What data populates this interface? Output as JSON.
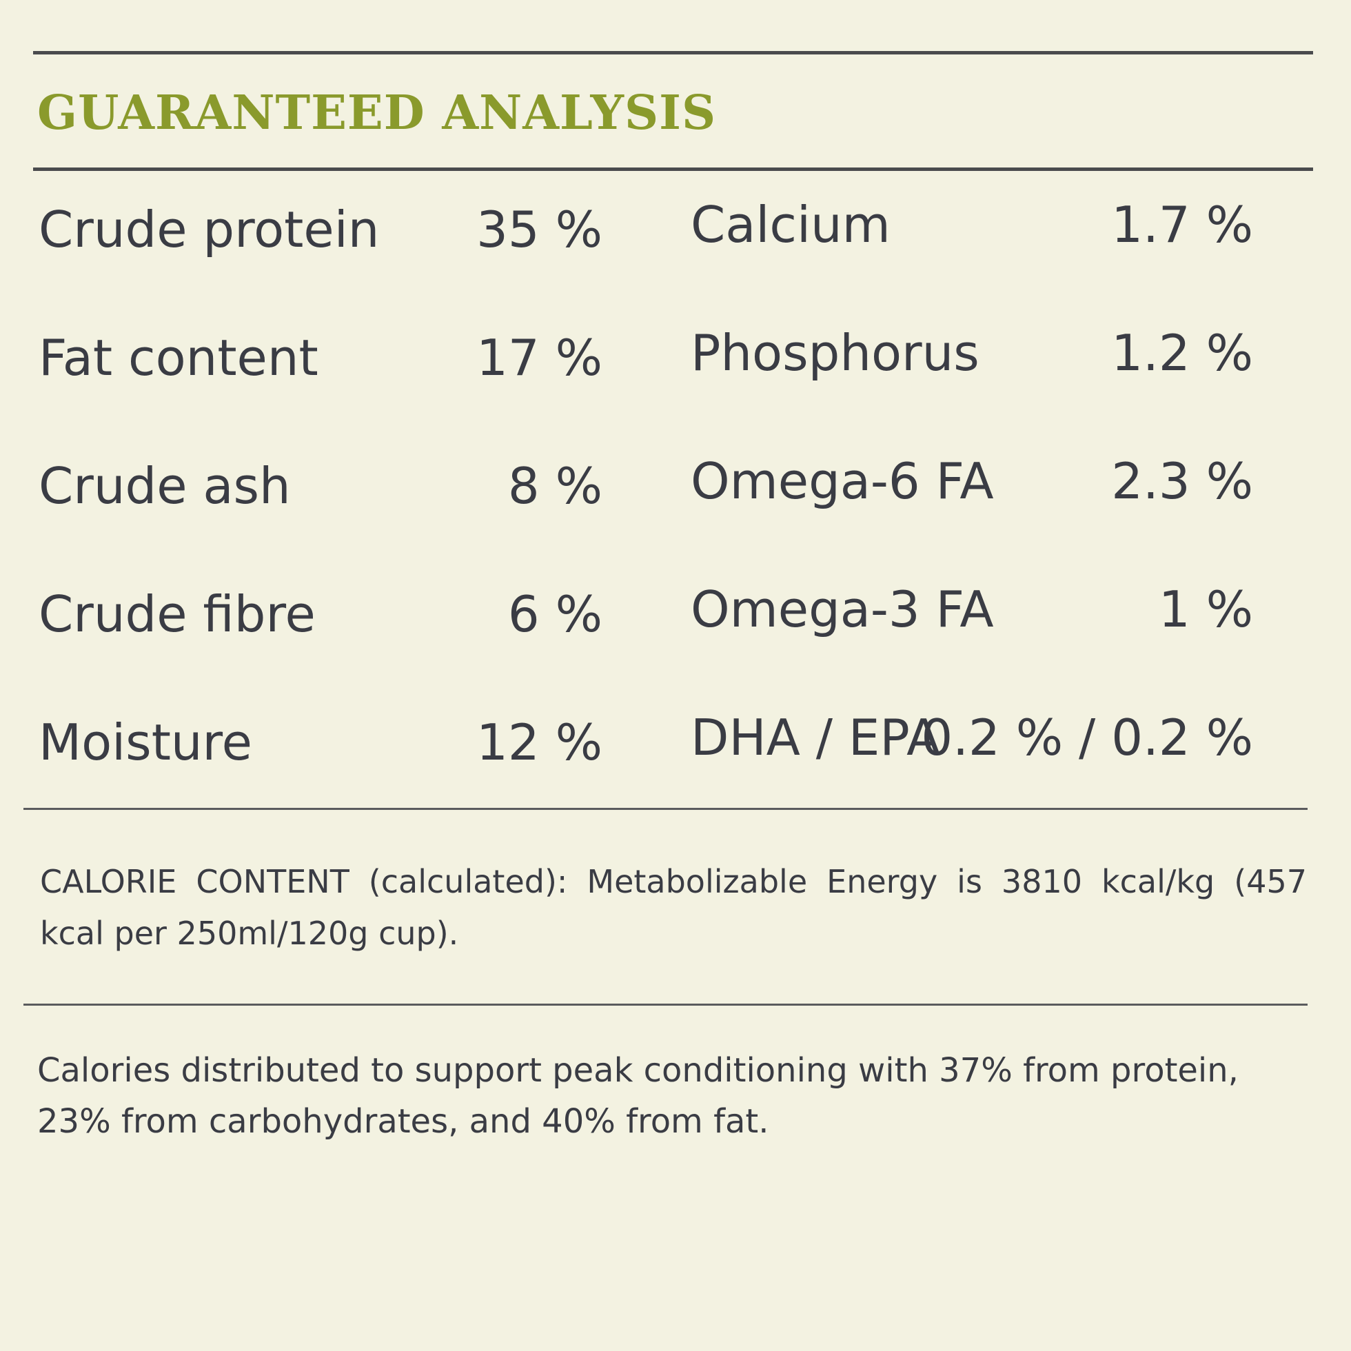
{
  "title": "GUARANTEED ANALYSIS",
  "left_column": [
    {
      "label": "Crude protein",
      "value": "35 %"
    },
    {
      "label": "Fat content",
      "value": "17 %"
    },
    {
      "label": "Crude ash",
      "value": "8 %"
    },
    {
      "label": "Crude fibre",
      "value": "6 %"
    },
    {
      "label": "Moisture",
      "value": "12 %"
    }
  ],
  "right_column": [
    {
      "label": "Calcium",
      "value": "1.7 %"
    },
    {
      "label": "Phosphorus",
      "value": "1.2 %"
    },
    {
      "label": "Omega-6 FA",
      "value": "2.3 %"
    },
    {
      "label": "Omega-3 FA",
      "value": "1 %"
    },
    {
      "label": "DHA / EPA",
      "value": "0.2 % / 0.2 %"
    }
  ],
  "calorie_content": "CALORIE CONTENT (calculated): Metabolizable Energy is 3810 kcal/kg (457 kcal per 250ml/120g cup).",
  "calorie_distribution": "Calories distributed to support peak conditioning with 37% from protein, 23% from carbohydrates, and 40% from fat.",
  "colors": {
    "background": "#f3f2e1",
    "title": "#8a9a2c",
    "text": "#3a3c44",
    "rules": "#4a4b4d"
  }
}
